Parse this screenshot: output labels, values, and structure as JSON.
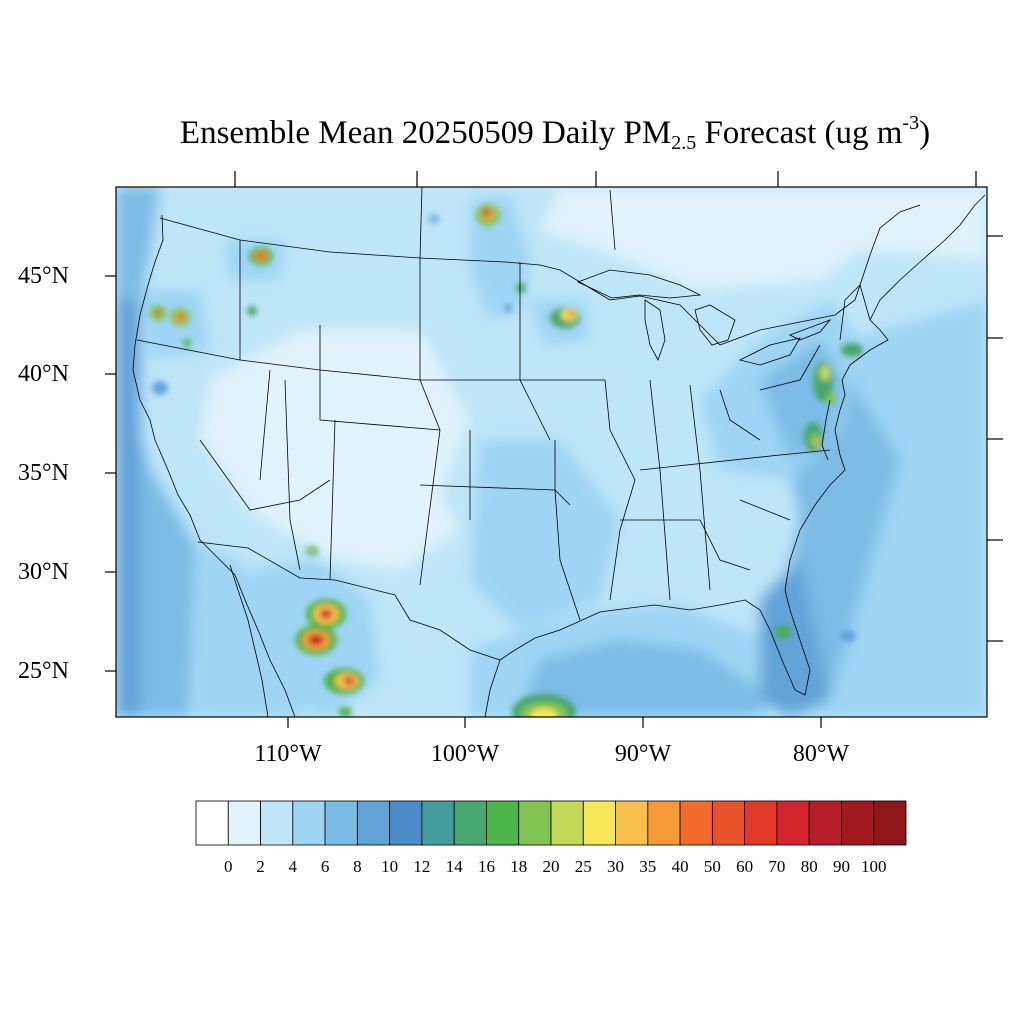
{
  "title": {
    "prefix": "Ensemble Mean 20250509 Daily PM",
    "subscript": "2.5",
    "middle": " Forecast (ug m",
    "superscript": "-3",
    "suffix": ")"
  },
  "map": {
    "region": "Continental United States",
    "lat_labels": [
      "45°N",
      "40°N",
      "35°N",
      "30°N",
      "25°N"
    ],
    "lon_labels": [
      "110°W",
      "100°W",
      "90°W",
      "80°W"
    ],
    "background_level_color": "#bfe5f8",
    "ocean_color": "#7bbce6",
    "hotspots": [
      {
        "area": "Northern Mexico (Chihuahua)",
        "lat": 28.0,
        "lon": -108.8,
        "peak": 60
      },
      {
        "area": "Northern Mexico (Chihuahua)",
        "lat": 26.6,
        "lon": -108.7,
        "peak": 70
      },
      {
        "area": "Northern Mexico (Durango/Sinaloa)",
        "lat": 24.6,
        "lon": -106.4,
        "peak": 60
      },
      {
        "area": "Gulf of Mexico (Bay of Campeche)",
        "lat": 22.8,
        "lon": -95.0,
        "peak": 25
      },
      {
        "area": "Idaho / Montana",
        "lat": 46.0,
        "lon": -111.6,
        "peak": 60
      },
      {
        "area": "Oregon",
        "lat": 43.0,
        "lon": -121.6,
        "peak": 50
      },
      {
        "area": "Oregon",
        "lat": 43.0,
        "lon": -119.6,
        "peak": 60
      },
      {
        "area": "Manitoba / North Dakota",
        "lat": 48.0,
        "lon": -98.3,
        "peak": 70
      },
      {
        "area": "Minnesota / Wisconsin",
        "lat": 43.0,
        "lon": -94.2,
        "peak": 40
      },
      {
        "area": "New Jersey",
        "lat": 40.0,
        "lon": -80.2,
        "peak": 30
      },
      {
        "area": "Virginia",
        "lat": 36.6,
        "lon": -80.4,
        "peak": 30
      },
      {
        "area": "Central Florida",
        "lat": 26.2,
        "lon": -82.2,
        "peak": 20
      },
      {
        "area": "Arizona / New Mexico",
        "lat": 31.0,
        "lon": -109.8,
        "peak": 20
      }
    ]
  },
  "colorbar": {
    "labels": [
      "0",
      "2",
      "4",
      "6",
      "8",
      "10",
      "12",
      "14",
      "16",
      "18",
      "20",
      "25",
      "30",
      "35",
      "40",
      "50",
      "60",
      "70",
      "80",
      "90",
      "100"
    ],
    "colors": [
      "#ffffff",
      "#e0f3fb",
      "#bfe5f8",
      "#9dd5f3",
      "#7bbce6",
      "#62a3d8",
      "#4a8bc8",
      "#459c9d",
      "#48a66f",
      "#4db54a",
      "#82c452",
      "#c4d95a",
      "#f7e65a",
      "#f8bf4b",
      "#f79a3a",
      "#f26b2c",
      "#e8522b",
      "#e0392a",
      "#d1242c",
      "#b71d26",
      "#a2191d",
      "#8e1518"
    ]
  }
}
